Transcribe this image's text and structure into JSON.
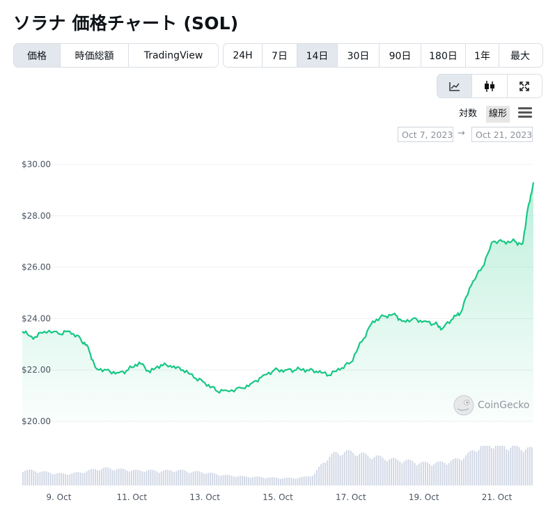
{
  "title": "ソラナ 価格チャート (SOL)",
  "metric_tabs": [
    "価格",
    "時価総額",
    "TradingView"
  ],
  "metric_active": 0,
  "range_tabs": [
    "24H",
    "7日",
    "14日",
    "30日",
    "90日",
    "180日",
    "1年",
    "最大"
  ],
  "range_active": 2,
  "chart_tools": [
    "line-chart-icon",
    "candlestick-icon",
    "fullscreen-icon"
  ],
  "scale_options": {
    "log": "対数",
    "linear": "線形",
    "active": "linear"
  },
  "date_from": "Oct 7, 2023",
  "date_arrow": "→",
  "date_to": "Oct 21, 2023",
  "watermark": "CoinGecko",
  "colors": {
    "line": "#16c784",
    "active_bg": "#e3e8ee",
    "volume": "#cfd6e4"
  },
  "chart_data": {
    "type": "area",
    "title": "",
    "xlabel": "",
    "ylabel": "",
    "ylim": [
      20,
      30
    ],
    "yticks": [
      "$30.00",
      "$28.00",
      "$26.00",
      "$24.00",
      "$22.00",
      "$20.00"
    ],
    "ytick_values": [
      30,
      28,
      26,
      24,
      22,
      20
    ],
    "xticks": [
      "9. Oct",
      "11. Oct",
      "13. Oct",
      "15. Oct",
      "17. Oct",
      "19. Oct",
      "21. Oct"
    ],
    "xtick_days": [
      9,
      11,
      13,
      15,
      17,
      19,
      21
    ],
    "x_range_days": [
      8.0,
      22.0
    ],
    "grid": true,
    "series": [
      {
        "values_day": [
          8.0,
          8.3,
          8.6,
          9.0,
          9.3,
          9.6,
          9.8,
          10.0,
          10.3,
          10.6,
          10.9,
          11.2,
          11.5,
          11.8,
          12.1,
          12.4,
          12.7,
          13.0,
          13.3,
          13.6,
          14.0,
          14.3,
          14.6,
          14.9,
          15.2,
          15.5,
          15.8,
          16.1,
          16.4,
          16.7,
          17.0,
          17.3,
          17.6,
          17.9,
          18.2,
          18.4,
          18.7,
          19.0,
          19.3,
          19.5,
          19.8,
          20.0,
          20.3,
          20.6,
          20.9,
          21.2,
          21.5,
          21.7,
          21.85,
          22.0
        ],
        "values_price": [
          23.5,
          23.2,
          23.5,
          23.4,
          23.5,
          23.2,
          22.9,
          22.1,
          22.0,
          21.9,
          22.0,
          22.3,
          21.9,
          22.2,
          22.1,
          22.0,
          21.7,
          21.5,
          21.2,
          21.2,
          21.3,
          21.5,
          21.8,
          22.0,
          22.0,
          22.0,
          22.0,
          21.9,
          21.8,
          22.0,
          22.3,
          23.1,
          23.9,
          24.1,
          24.2,
          23.9,
          24.0,
          23.9,
          23.8,
          23.6,
          24.0,
          24.2,
          25.3,
          26.0,
          27.0,
          27.0,
          27.0,
          26.9,
          28.3,
          29.3
        ]
      }
    ],
    "volume": [
      0.38,
      0.36,
      0.33,
      0.3,
      0.28,
      0.3,
      0.34,
      0.4,
      0.42,
      0.4,
      0.38,
      0.36,
      0.37,
      0.35,
      0.36,
      0.37,
      0.34,
      0.33,
      0.3,
      0.26,
      0.24,
      0.22,
      0.21,
      0.2,
      0.19,
      0.18,
      0.18,
      0.2,
      0.26,
      0.6,
      0.78,
      0.82,
      0.8,
      0.74,
      0.7,
      0.66,
      0.62,
      0.6,
      0.56,
      0.54,
      0.55,
      0.58,
      0.65,
      0.78,
      0.96,
      1.0,
      0.97,
      0.94,
      0.92,
      0.88
    ]
  }
}
